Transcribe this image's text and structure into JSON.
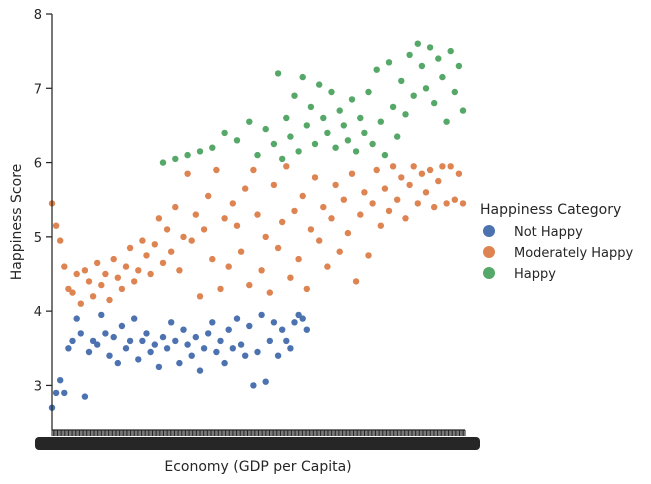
{
  "chart_data": {
    "type": "scatter",
    "xlabel": "Economy (GDP per Capita)",
    "ylabel": "Happiness Score",
    "ylim": [
      2.4,
      8.0
    ],
    "yticks": [
      3,
      4,
      5,
      6,
      7,
      8
    ],
    "x_axis_note": "categorical axis with one overlapping tick label per distinct GDP value (unreadable)",
    "grid": false,
    "legend": {
      "title": "Happiness Category",
      "placement": "right",
      "entries": [
        {
          "name": "Not Happy",
          "color": "#4c72b0"
        },
        {
          "name": "Moderately Happy",
          "color": "#dd8452"
        },
        {
          "name": "Happy",
          "color": "#55a868"
        }
      ]
    },
    "series": [
      {
        "name": "Not Happy",
        "color": "#4c72b0",
        "x_range": [
          0.0,
          0.62
        ],
        "points": [
          [
            0.0,
            2.7
          ],
          [
            0.01,
            2.9
          ],
          [
            0.02,
            3.07
          ],
          [
            0.03,
            2.9
          ],
          [
            0.04,
            3.5
          ],
          [
            0.05,
            3.6
          ],
          [
            0.06,
            3.9
          ],
          [
            0.07,
            3.7
          ],
          [
            0.08,
            2.85
          ],
          [
            0.09,
            3.45
          ],
          [
            0.1,
            3.6
          ],
          [
            0.11,
            3.55
          ],
          [
            0.12,
            3.95
          ],
          [
            0.13,
            3.7
          ],
          [
            0.14,
            3.4
          ],
          [
            0.15,
            3.65
          ],
          [
            0.16,
            3.3
          ],
          [
            0.17,
            3.8
          ],
          [
            0.18,
            3.5
          ],
          [
            0.19,
            3.6
          ],
          [
            0.2,
            3.9
          ],
          [
            0.21,
            3.35
          ],
          [
            0.22,
            3.6
          ],
          [
            0.23,
            3.7
          ],
          [
            0.24,
            3.45
          ],
          [
            0.25,
            3.55
          ],
          [
            0.26,
            3.25
          ],
          [
            0.27,
            3.65
          ],
          [
            0.28,
            3.5
          ],
          [
            0.29,
            3.85
          ],
          [
            0.3,
            3.6
          ],
          [
            0.31,
            3.3
          ],
          [
            0.32,
            3.75
          ],
          [
            0.33,
            3.55
          ],
          [
            0.34,
            3.4
          ],
          [
            0.35,
            3.65
          ],
          [
            0.36,
            3.2
          ],
          [
            0.37,
            3.5
          ],
          [
            0.38,
            3.7
          ],
          [
            0.39,
            3.85
          ],
          [
            0.4,
            3.45
          ],
          [
            0.41,
            3.6
          ],
          [
            0.42,
            3.3
          ],
          [
            0.43,
            3.75
          ],
          [
            0.44,
            3.5
          ],
          [
            0.45,
            3.9
          ],
          [
            0.46,
            3.55
          ],
          [
            0.47,
            3.4
          ],
          [
            0.48,
            3.8
          ],
          [
            0.49,
            3.0
          ],
          [
            0.5,
            3.45
          ],
          [
            0.51,
            3.95
          ],
          [
            0.52,
            3.05
          ],
          [
            0.53,
            3.6
          ],
          [
            0.54,
            3.85
          ],
          [
            0.55,
            3.4
          ],
          [
            0.56,
            3.75
          ],
          [
            0.57,
            3.6
          ],
          [
            0.58,
            3.5
          ],
          [
            0.59,
            3.85
          ],
          [
            0.6,
            3.95
          ],
          [
            0.61,
            3.9
          ],
          [
            0.62,
            3.75
          ]
        ]
      },
      {
        "name": "Moderately Happy",
        "color": "#dd8452",
        "x_range": [
          0.0,
          1.0
        ],
        "points": [
          [
            0.0,
            5.45
          ],
          [
            0.01,
            5.15
          ],
          [
            0.02,
            4.95
          ],
          [
            0.03,
            4.6
          ],
          [
            0.04,
            4.3
          ],
          [
            0.05,
            4.25
          ],
          [
            0.06,
            4.5
          ],
          [
            0.07,
            4.1
          ],
          [
            0.08,
            4.55
          ],
          [
            0.09,
            4.4
          ],
          [
            0.1,
            4.2
          ],
          [
            0.11,
            4.65
          ],
          [
            0.12,
            4.35
          ],
          [
            0.13,
            4.5
          ],
          [
            0.14,
            4.15
          ],
          [
            0.15,
            4.7
          ],
          [
            0.16,
            4.45
          ],
          [
            0.17,
            4.3
          ],
          [
            0.18,
            4.6
          ],
          [
            0.19,
            4.85
          ],
          [
            0.2,
            4.4
          ],
          [
            0.21,
            4.55
          ],
          [
            0.22,
            4.95
          ],
          [
            0.23,
            4.75
          ],
          [
            0.24,
            4.5
          ],
          [
            0.25,
            4.9
          ],
          [
            0.26,
            5.25
          ],
          [
            0.27,
            4.65
          ],
          [
            0.28,
            5.1
          ],
          [
            0.29,
            4.8
          ],
          [
            0.3,
            5.4
          ],
          [
            0.31,
            4.55
          ],
          [
            0.32,
            5.0
          ],
          [
            0.33,
            5.85
          ],
          [
            0.34,
            4.95
          ],
          [
            0.35,
            5.3
          ],
          [
            0.36,
            4.2
          ],
          [
            0.37,
            5.1
          ],
          [
            0.38,
            5.55
          ],
          [
            0.39,
            4.7
          ],
          [
            0.4,
            5.9
          ],
          [
            0.41,
            4.3
          ],
          [
            0.42,
            5.25
          ],
          [
            0.43,
            4.6
          ],
          [
            0.44,
            5.45
          ],
          [
            0.45,
            5.15
          ],
          [
            0.46,
            4.8
          ],
          [
            0.47,
            5.65
          ],
          [
            0.48,
            4.35
          ],
          [
            0.49,
            5.9
          ],
          [
            0.5,
            5.3
          ],
          [
            0.51,
            4.55
          ],
          [
            0.52,
            5.0
          ],
          [
            0.53,
            4.25
          ],
          [
            0.54,
            5.7
          ],
          [
            0.55,
            4.85
          ],
          [
            0.56,
            5.2
          ],
          [
            0.57,
            5.95
          ],
          [
            0.58,
            4.45
          ],
          [
            0.59,
            5.35
          ],
          [
            0.6,
            4.7
          ],
          [
            0.61,
            5.55
          ],
          [
            0.62,
            4.3
          ],
          [
            0.63,
            5.1
          ],
          [
            0.64,
            5.8
          ],
          [
            0.65,
            4.95
          ],
          [
            0.66,
            5.4
          ],
          [
            0.67,
            4.6
          ],
          [
            0.68,
            5.25
          ],
          [
            0.69,
            5.7
          ],
          [
            0.7,
            4.8
          ],
          [
            0.71,
            5.5
          ],
          [
            0.72,
            5.05
          ],
          [
            0.73,
            5.85
          ],
          [
            0.74,
            4.4
          ],
          [
            0.75,
            5.3
          ],
          [
            0.76,
            5.6
          ],
          [
            0.77,
            4.75
          ],
          [
            0.78,
            5.45
          ],
          [
            0.79,
            5.9
          ],
          [
            0.8,
            5.15
          ],
          [
            0.81,
            5.65
          ],
          [
            0.82,
            5.35
          ],
          [
            0.83,
            5.95
          ],
          [
            0.84,
            5.5
          ],
          [
            0.85,
            5.8
          ],
          [
            0.86,
            5.25
          ],
          [
            0.87,
            5.7
          ],
          [
            0.88,
            5.95
          ],
          [
            0.89,
            5.45
          ],
          [
            0.9,
            5.85
          ],
          [
            0.91,
            5.6
          ],
          [
            0.92,
            5.9
          ],
          [
            0.93,
            5.4
          ],
          [
            0.94,
            5.75
          ],
          [
            0.95,
            5.95
          ],
          [
            0.96,
            5.45
          ],
          [
            0.97,
            5.95
          ],
          [
            0.98,
            5.5
          ],
          [
            0.99,
            5.85
          ],
          [
            1.0,
            5.45
          ]
        ]
      },
      {
        "name": "Happy",
        "color": "#55a868",
        "x_range": [
          0.27,
          1.0
        ],
        "points": [
          [
            0.27,
            6.0
          ],
          [
            0.3,
            6.05
          ],
          [
            0.33,
            6.1
          ],
          [
            0.36,
            6.15
          ],
          [
            0.39,
            6.2
          ],
          [
            0.42,
            6.4
          ],
          [
            0.45,
            6.3
          ],
          [
            0.48,
            6.55
          ],
          [
            0.5,
            6.1
          ],
          [
            0.52,
            6.45
          ],
          [
            0.54,
            6.25
          ],
          [
            0.55,
            7.2
          ],
          [
            0.56,
            6.05
          ],
          [
            0.57,
            6.6
          ],
          [
            0.58,
            6.35
          ],
          [
            0.59,
            6.9
          ],
          [
            0.6,
            6.15
          ],
          [
            0.61,
            7.15
          ],
          [
            0.62,
            6.5
          ],
          [
            0.63,
            6.75
          ],
          [
            0.64,
            6.25
          ],
          [
            0.65,
            7.05
          ],
          [
            0.66,
            6.6
          ],
          [
            0.67,
            6.4
          ],
          [
            0.68,
            6.95
          ],
          [
            0.69,
            6.2
          ],
          [
            0.7,
            6.7
          ],
          [
            0.71,
            6.5
          ],
          [
            0.72,
            6.3
          ],
          [
            0.73,
            6.85
          ],
          [
            0.74,
            6.15
          ],
          [
            0.75,
            6.6
          ],
          [
            0.76,
            6.4
          ],
          [
            0.77,
            6.95
          ],
          [
            0.78,
            6.25
          ],
          [
            0.79,
            7.25
          ],
          [
            0.8,
            6.55
          ],
          [
            0.81,
            6.1
          ],
          [
            0.82,
            7.35
          ],
          [
            0.83,
            6.75
          ],
          [
            0.84,
            6.35
          ],
          [
            0.85,
            7.1
          ],
          [
            0.86,
            6.65
          ],
          [
            0.87,
            7.45
          ],
          [
            0.88,
            6.9
          ],
          [
            0.89,
            7.6
          ],
          [
            0.9,
            7.3
          ],
          [
            0.91,
            7.0
          ],
          [
            0.92,
            7.55
          ],
          [
            0.93,
            6.8
          ],
          [
            0.94,
            7.4
          ],
          [
            0.95,
            7.15
          ],
          [
            0.96,
            6.55
          ],
          [
            0.97,
            7.5
          ],
          [
            0.98,
            6.95
          ],
          [
            0.99,
            7.3
          ],
          [
            1.0,
            6.7
          ]
        ]
      }
    ]
  }
}
